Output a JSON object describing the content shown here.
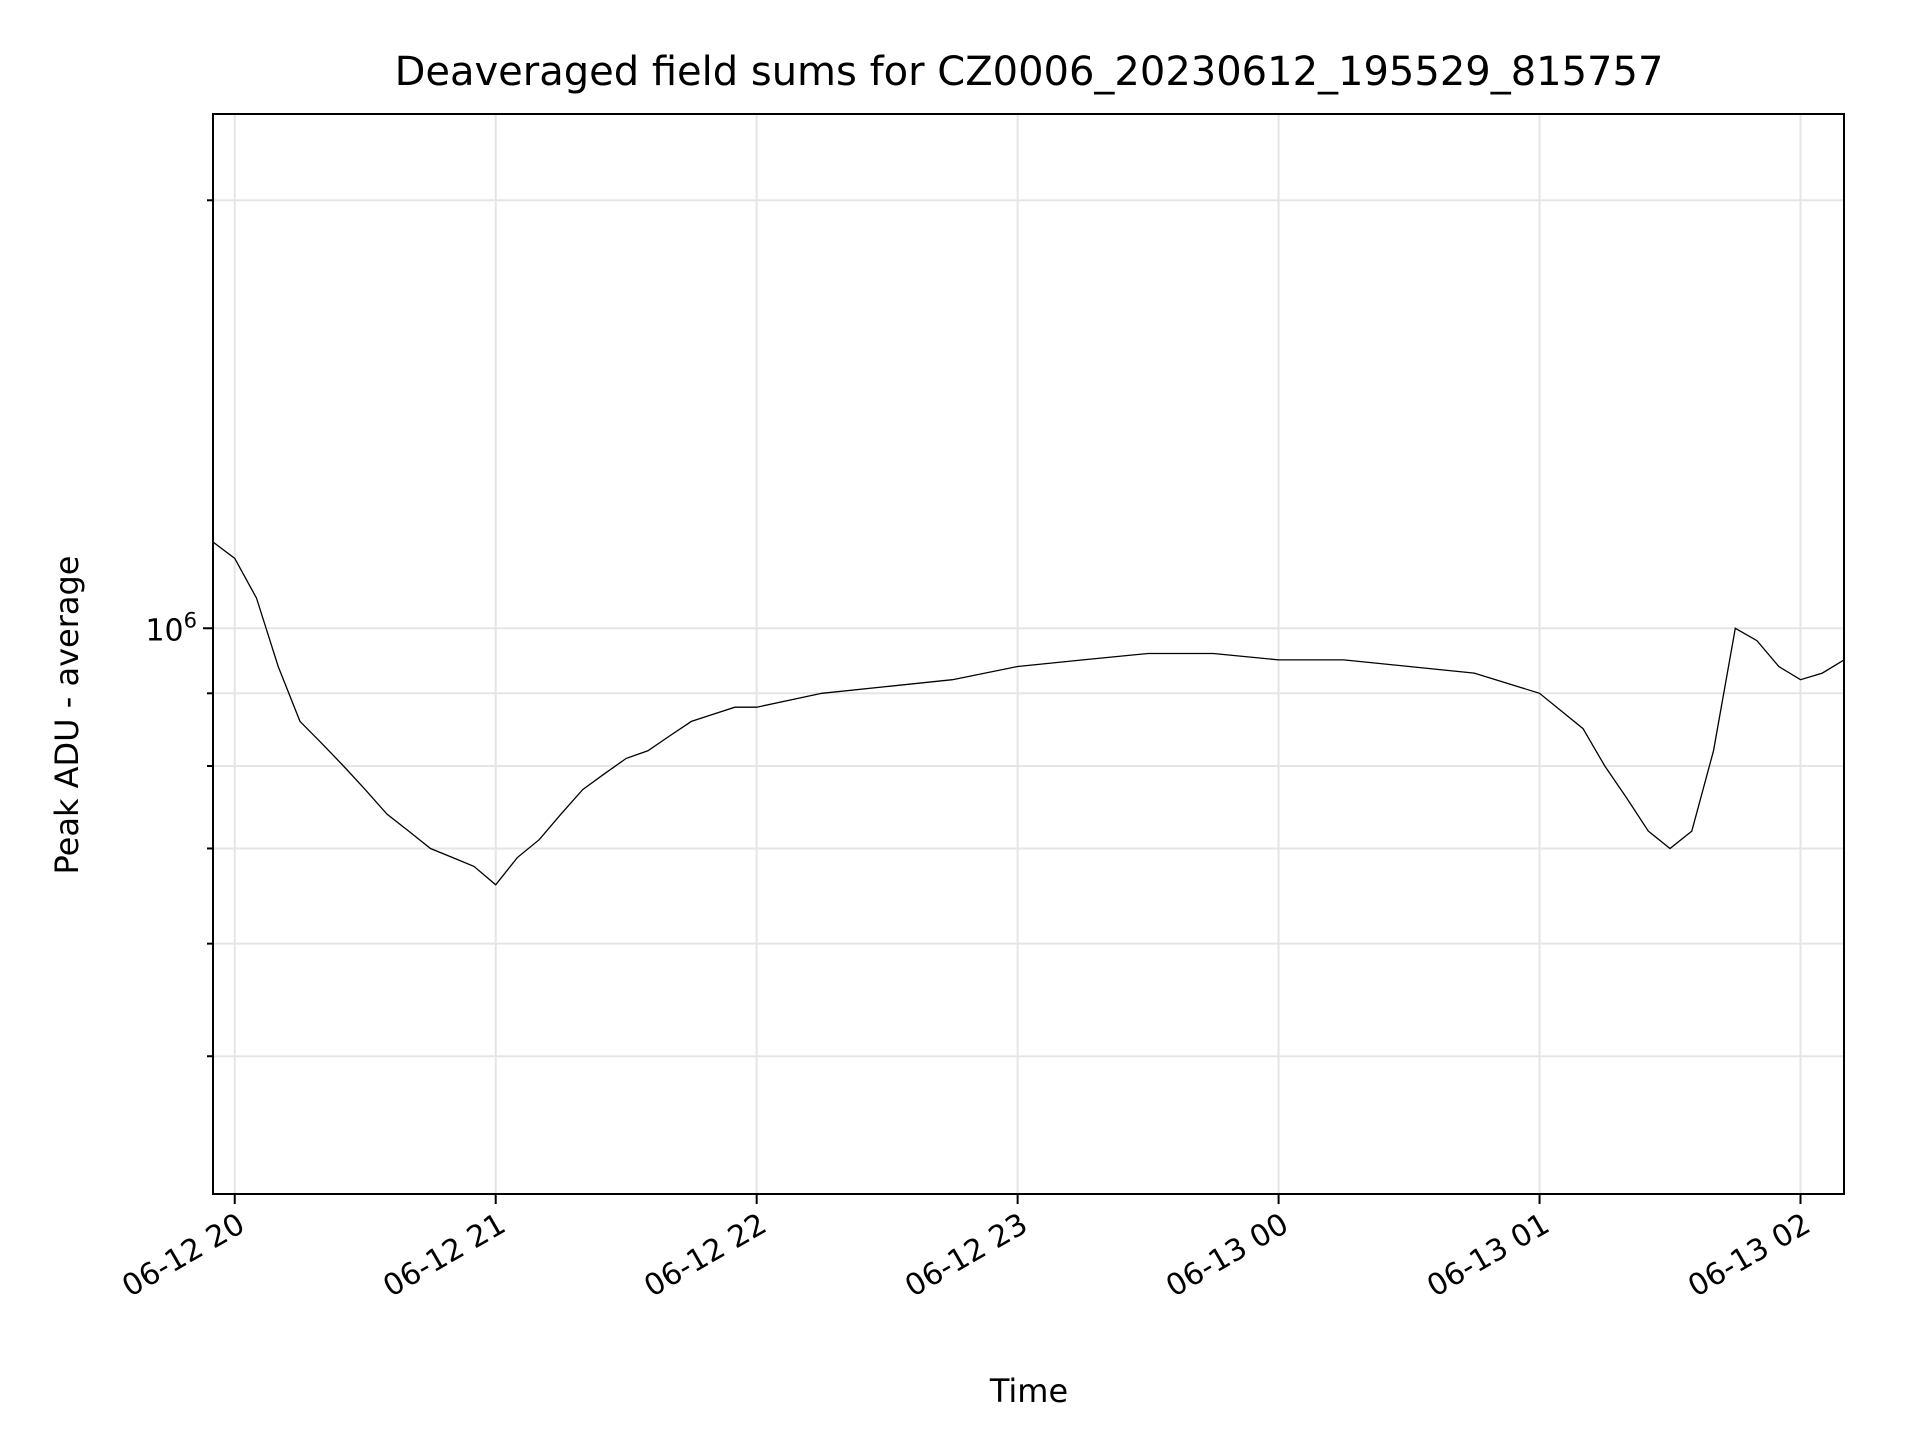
{
  "chart_data": {
    "type": "line",
    "title": "Deaveraged field sums for CZ0006_20230612_195529_815757",
    "xlabel": "Time",
    "ylabel": "Peak ADU - average",
    "y_scale": "log",
    "xlim": [
      "2023-06-12T19:55:00",
      "2023-06-13T02:10:00"
    ],
    "ylim": [
      400000,
      2300000
    ],
    "x_ticks": [
      {
        "value": "2023-06-12T20:00:00",
        "label": "06-12 20"
      },
      {
        "value": "2023-06-12T21:00:00",
        "label": "06-12 21"
      },
      {
        "value": "2023-06-12T22:00:00",
        "label": "06-12 22"
      },
      {
        "value": "2023-06-12T23:00:00",
        "label": "06-12 23"
      },
      {
        "value": "2023-06-13T00:00:00",
        "label": "06-13 00"
      },
      {
        "value": "2023-06-13T01:00:00",
        "label": "06-13 01"
      },
      {
        "value": "2023-06-13T02:00:00",
        "label": "06-13 02"
      }
    ],
    "y_major_ticks": [
      {
        "value": 1000000,
        "base": "10",
        "exp": "6"
      }
    ],
    "y_minor_ticks": [
      500000,
      600000,
      700000,
      800000,
      900000,
      2000000
    ],
    "grid": true,
    "legend": "none",
    "line_color": "#000000",
    "series": [
      {
        "x": [
          "2023-06-12T19:55:00",
          "2023-06-12T20:00:00",
          "2023-06-12T20:05:00",
          "2023-06-12T20:10:00",
          "2023-06-12T20:15:00",
          "2023-06-12T20:20:00",
          "2023-06-12T20:25:00",
          "2023-06-12T20:30:00",
          "2023-06-12T20:35:00",
          "2023-06-12T20:40:00",
          "2023-06-12T20:45:00",
          "2023-06-12T20:50:00",
          "2023-06-12T20:55:00",
          "2023-06-12T21:00:00",
          "2023-06-12T21:05:00",
          "2023-06-12T21:10:00",
          "2023-06-12T21:15:00",
          "2023-06-12T21:20:00",
          "2023-06-12T21:25:00",
          "2023-06-12T21:30:00",
          "2023-06-12T21:35:00",
          "2023-06-12T21:40:00",
          "2023-06-12T21:45:00",
          "2023-06-12T21:50:00",
          "2023-06-12T21:55:00",
          "2023-06-12T22:00:00",
          "2023-06-12T22:15:00",
          "2023-06-12T22:30:00",
          "2023-06-12T22:45:00",
          "2023-06-12T23:00:00",
          "2023-06-12T23:15:00",
          "2023-06-12T23:30:00",
          "2023-06-12T23:45:00",
          "2023-06-13T00:00:00",
          "2023-06-13T00:15:00",
          "2023-06-13T00:30:00",
          "2023-06-13T00:45:00",
          "2023-06-13T01:00:00",
          "2023-06-13T01:10:00",
          "2023-06-13T01:15:00",
          "2023-06-13T01:20:00",
          "2023-06-13T01:25:00",
          "2023-06-13T01:30:00",
          "2023-06-13T01:35:00",
          "2023-06-13T01:40:00",
          "2023-06-13T01:45:00",
          "2023-06-13T01:50:00",
          "2023-06-13T01:55:00",
          "2023-06-13T02:00:00",
          "2023-06-13T02:05:00",
          "2023-06-13T02:10:00"
        ],
        "y": [
          1150000,
          1120000,
          1050000,
          940000,
          860000,
          830000,
          800000,
          770000,
          740000,
          720000,
          700000,
          690000,
          680000,
          660000,
          690000,
          710000,
          740000,
          770000,
          790000,
          810000,
          820000,
          840000,
          860000,
          870000,
          880000,
          880000,
          900000,
          910000,
          920000,
          940000,
          950000,
          960000,
          960000,
          950000,
          950000,
          940000,
          930000,
          900000,
          850000,
          800000,
          760000,
          720000,
          700000,
          720000,
          820000,
          1000000,
          980000,
          940000,
          920000,
          930000,
          950000
        ]
      }
    ]
  }
}
